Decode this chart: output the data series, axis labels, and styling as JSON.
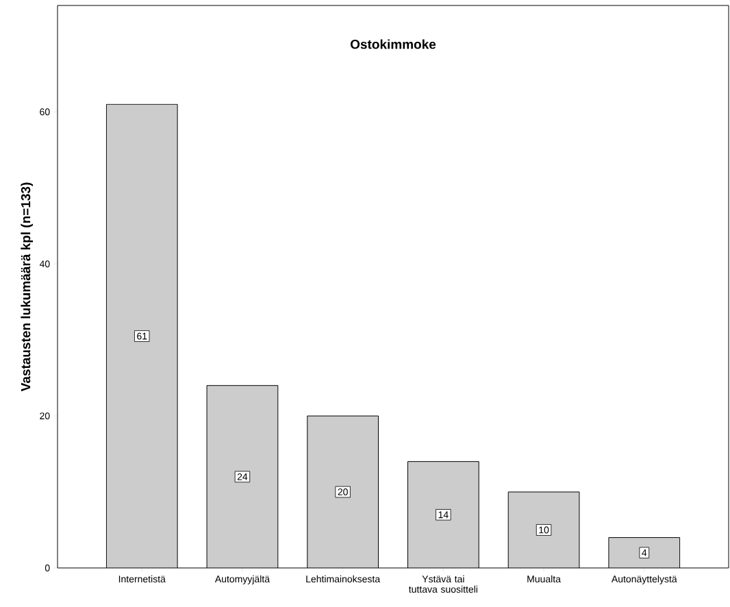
{
  "chart_data": {
    "type": "bar",
    "title": "Ostokimmoke",
    "ylabel": "Vastausten lukumäärä kpl (n=133)",
    "categories": [
      "Internetistä",
      "Automyyjältä",
      "Lehtimainoksesta",
      "Ystävä tai tuttava suositteli",
      "Muualta",
      "Autonäyttelystä"
    ],
    "values": [
      61,
      24,
      20,
      14,
      10,
      4
    ],
    "color": "#cccccc",
    "ylim": [
      0,
      74
    ],
    "yticks": [
      0,
      20,
      40,
      60
    ],
    "data_labels": true
  }
}
